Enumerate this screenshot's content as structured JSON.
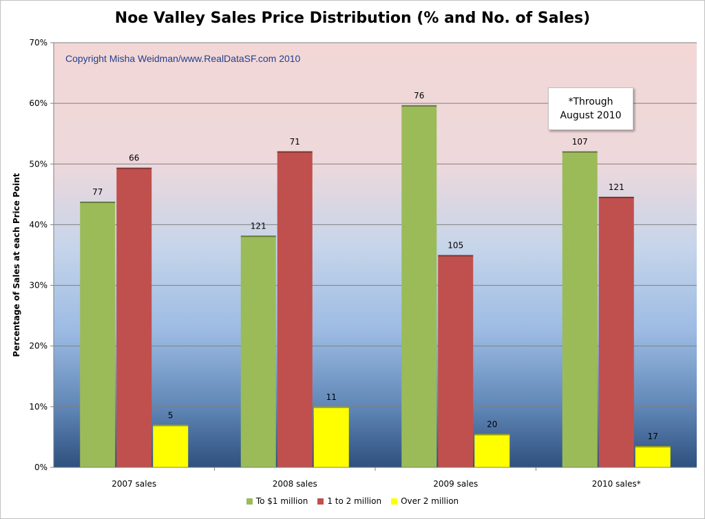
{
  "chart_data": {
    "type": "bar",
    "title": "Noe Valley Sales Price Distribution (% and No. of Sales)",
    "ylabel": "Percentage of Sales at each Price Point",
    "xlabel": "",
    "ylim": [
      0,
      70
    ],
    "yticks": [
      "0%",
      "10%",
      "20%",
      "30%",
      "40%",
      "50%",
      "60%",
      "70%"
    ],
    "grid": true,
    "legend_position": "bottom",
    "categories": [
      "2007 sales",
      "2008 sales",
      "2009 sales",
      "2010 sales*"
    ],
    "series": [
      {
        "name": "To $1 million",
        "color": "#9bbb59",
        "values": [
          43.8,
          38.2,
          59.7,
          52.1
        ],
        "labels": [
          "77",
          "121",
          "76",
          "107"
        ]
      },
      {
        "name": "1 to 2 million",
        "color": "#c0504d",
        "values": [
          49.4,
          52.1,
          35.0,
          44.6
        ],
        "labels": [
          "66",
          "71",
          "105",
          "121"
        ]
      },
      {
        "name": "Over 2 million",
        "color": "#ffff00",
        "values": [
          7.0,
          10.0,
          5.5,
          3.5
        ],
        "labels": [
          "5",
          "11",
          "20",
          "17"
        ]
      }
    ],
    "annotations": {
      "copyright": "Copyright Misha Weidman/www.RealDataSF.com 2010",
      "note_line1": "*Through",
      "note_line2": "August 2010"
    }
  }
}
